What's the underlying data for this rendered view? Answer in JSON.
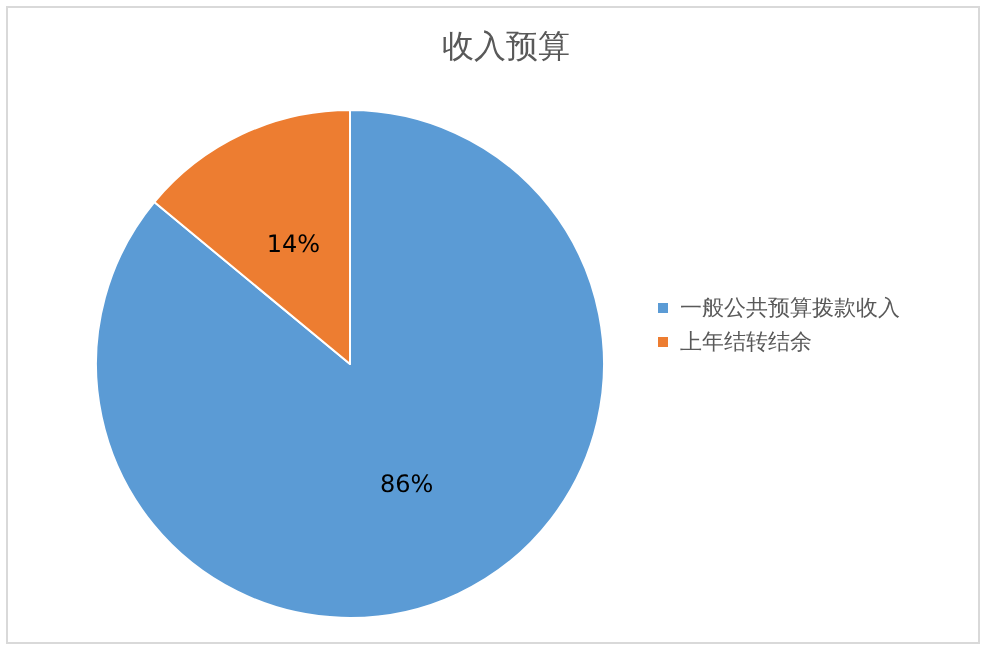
{
  "chart_data": {
    "type": "pie",
    "title": "收入预算",
    "categories": [
      "一般公共预算拨款收入",
      "上年结转结余"
    ],
    "values": [
      86,
      14
    ],
    "colors": [
      "#5b9bd5",
      "#ed7d31"
    ],
    "value_labels": [
      "86%",
      "14%"
    ],
    "legend": "right"
  }
}
